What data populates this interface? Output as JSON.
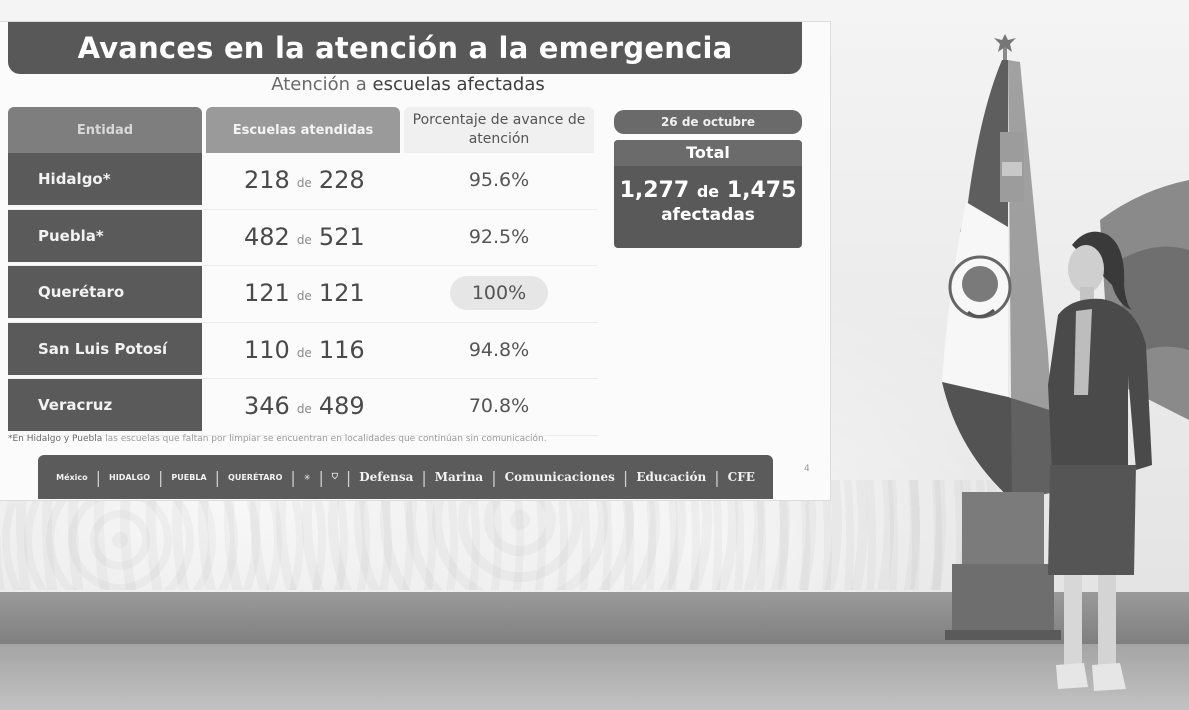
{
  "slide": {
    "title": "Avances en la atención a la emergencia",
    "subtitle_prefix": "Atención a",
    "subtitle_emphasis": "escuelas afectadas",
    "table": {
      "headers": [
        "Entidad",
        "Escuelas atendidas",
        "Porcentaje de avance de atención"
      ],
      "rows": [
        {
          "entity": "Hidalgo*",
          "attended": "218",
          "connector": "de",
          "total": "228",
          "percent": "95.6%"
        },
        {
          "entity": "Puebla*",
          "attended": "482",
          "connector": "de",
          "total": "521",
          "percent": "92.5%"
        },
        {
          "entity": "Querétaro",
          "attended": "121",
          "connector": "de",
          "total": "121",
          "percent": "100%"
        },
        {
          "entity": "San Luis Potosí",
          "attended": "110",
          "connector": "de",
          "total": "116",
          "percent": "94.8%"
        },
        {
          "entity": "Veracruz",
          "attended": "346",
          "connector": "de",
          "total": "489",
          "percent": "70.8%"
        }
      ]
    },
    "date_label": "26 de octubre",
    "total_box": {
      "heading": "Total",
      "attended": "1,277",
      "connector": "de",
      "total": "1,475",
      "label": "afectadas"
    },
    "footnote_prefix": "*En Hidalgo y Puebla",
    "footnote_rest": "las escuelas que faltan por limpiar se encuentran en localidades que continúan sin comunicación.",
    "logos": {
      "mexico": "México",
      "hidalgo": "HIDALGO",
      "puebla": "PUEBLA",
      "queretaro": "QUERÉTARO",
      "defensa": "Defensa",
      "marina": "Marina",
      "comunicaciones": "Comunicaciones",
      "educacion": "Educación",
      "cfe": "CFE"
    },
    "page_number": "4"
  }
}
